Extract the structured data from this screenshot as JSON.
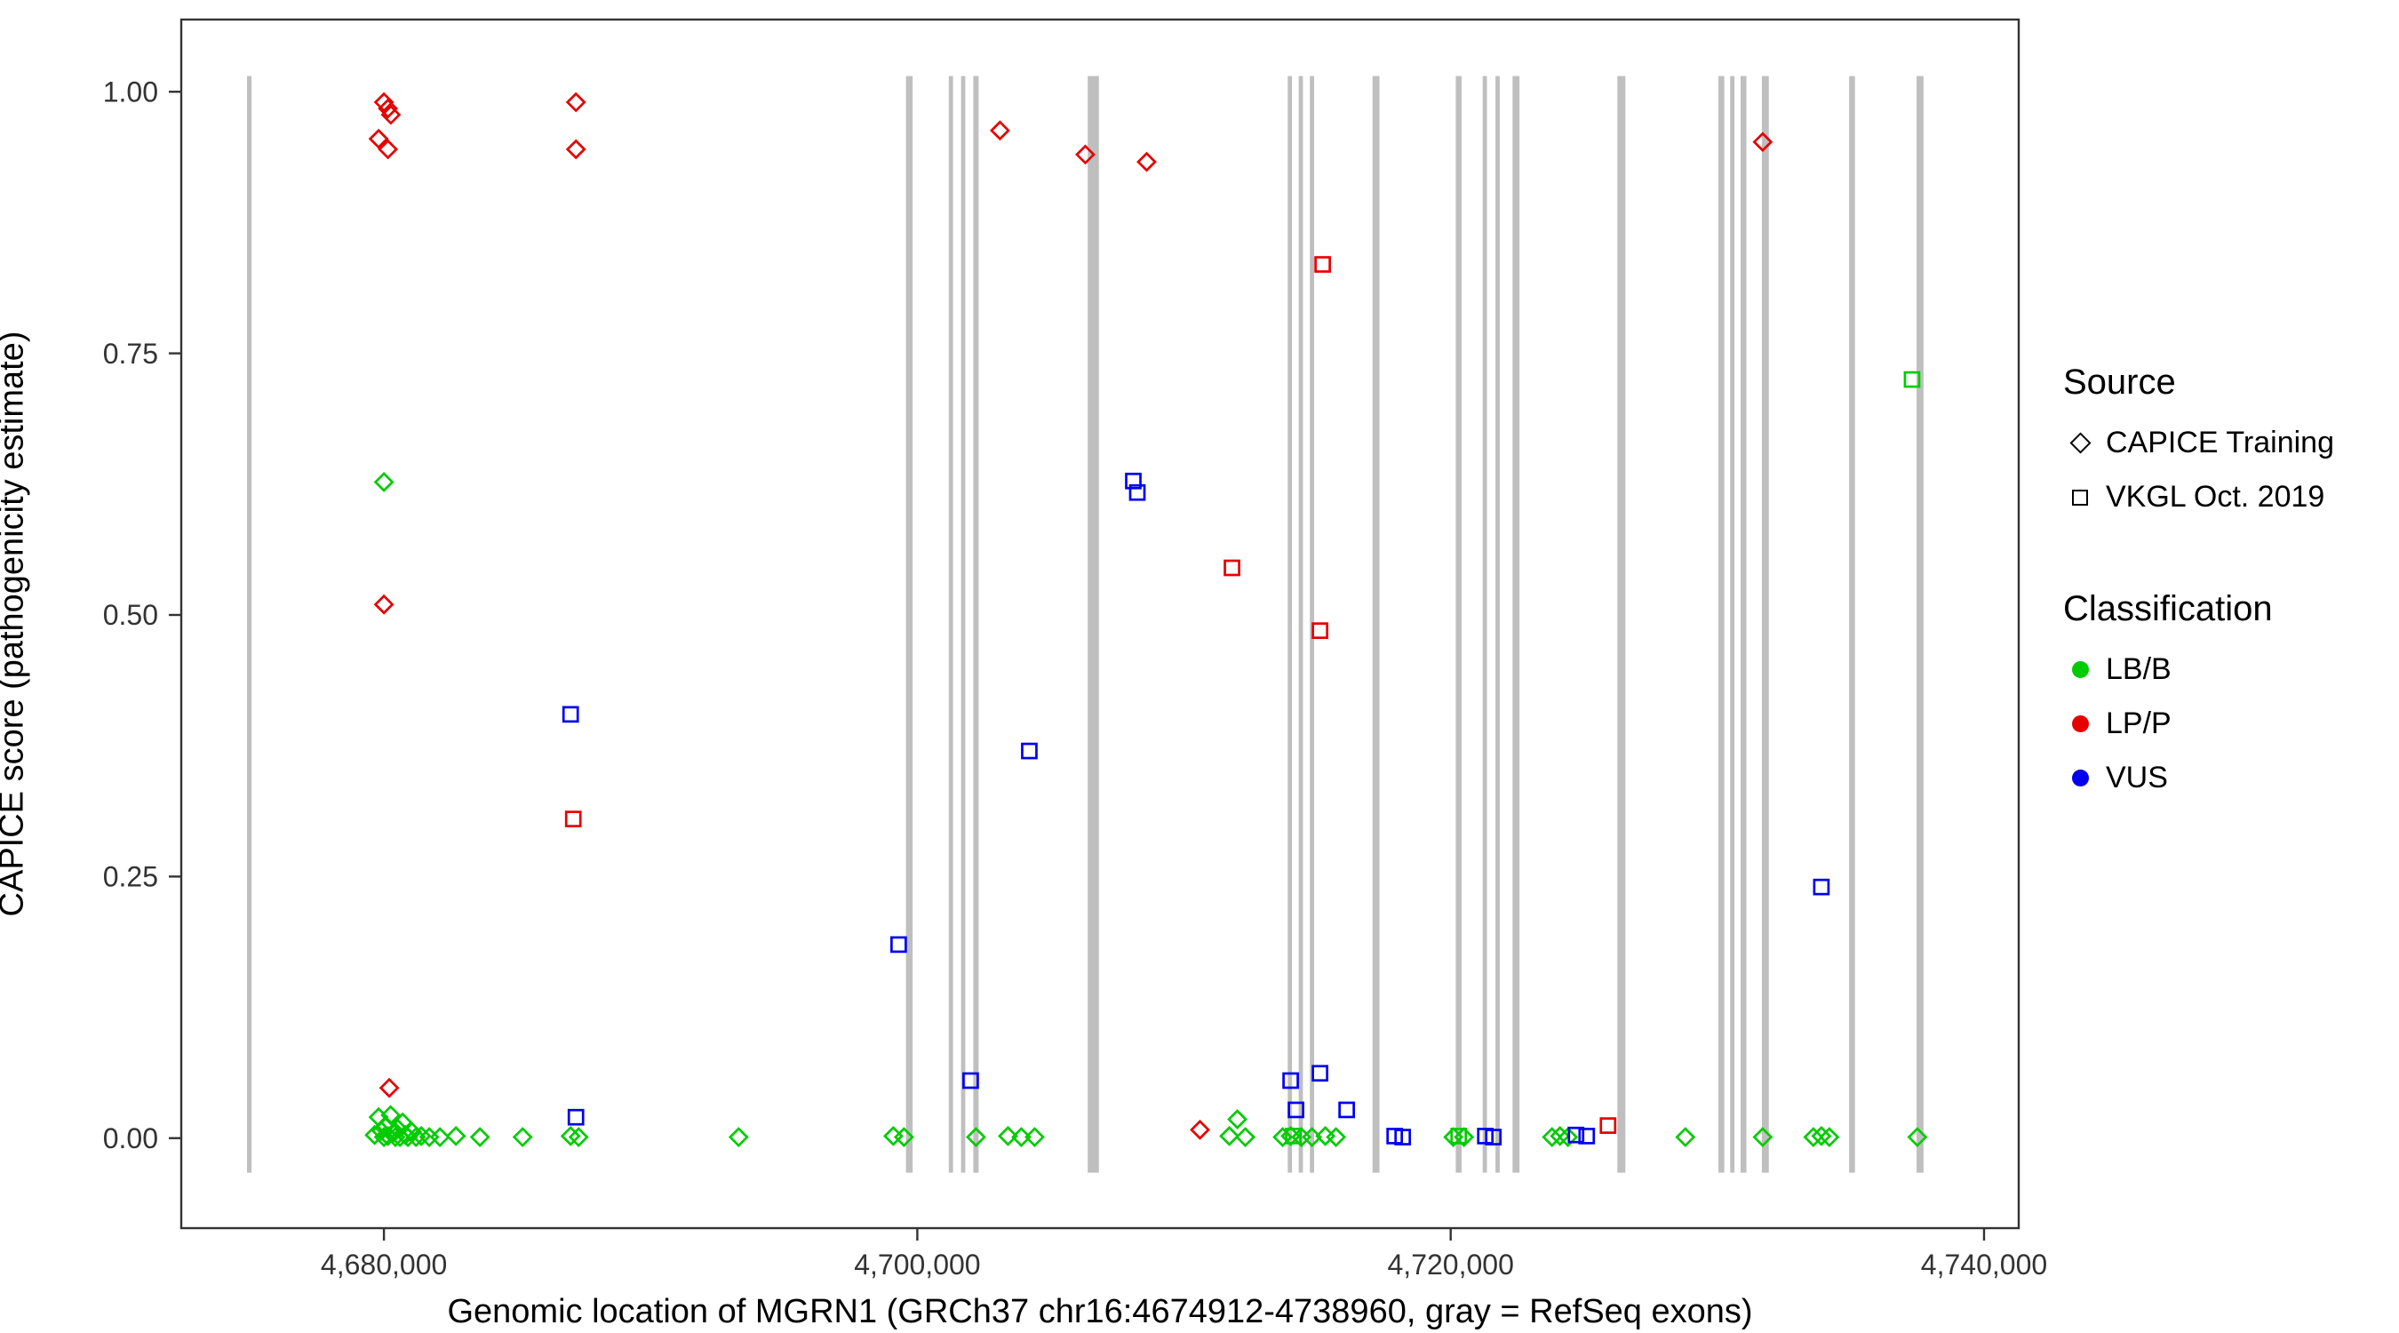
{
  "chart_data": {
    "type": "scatter",
    "title": "",
    "xlabel": "Genomic location of MGRN1 (GRCh37 chr16:4674912-4738960, gray = RefSeq exons)",
    "ylabel": "CAPICE score (pathogenicity estimate)",
    "xlim": [
      4672400,
      4741300
    ],
    "ylim": [
      -0.086,
      1.069
    ],
    "grid": false,
    "panel_border_color": "#333333",
    "exon_color": "#bfbfbf",
    "exon_y_span": [
      -0.033,
      1.015
    ],
    "x_ticks": [
      {
        "value": 4680000,
        "label": "4,680,000"
      },
      {
        "value": 4700000,
        "label": "4,700,000"
      },
      {
        "value": 4720000,
        "label": "4,720,000"
      },
      {
        "value": 4740000,
        "label": "4,740,000"
      }
    ],
    "y_ticks": [
      {
        "value": 0.0,
        "label": "0.00"
      },
      {
        "value": 0.25,
        "label": "0.25"
      },
      {
        "value": 0.5,
        "label": "0.50"
      },
      {
        "value": 0.75,
        "label": "0.75"
      },
      {
        "value": 1.0,
        "label": "1.00"
      }
    ],
    "exons": [
      {
        "x": 4674950,
        "width_bp": 170
      },
      {
        "x": 4699700,
        "width_bp": 250
      },
      {
        "x": 4701260,
        "width_bp": 160
      },
      {
        "x": 4701720,
        "width_bp": 160
      },
      {
        "x": 4702200,
        "width_bp": 200
      },
      {
        "x": 4706600,
        "width_bp": 420
      },
      {
        "x": 4713970,
        "width_bp": 160
      },
      {
        "x": 4714380,
        "width_bp": 160
      },
      {
        "x": 4714800,
        "width_bp": 160
      },
      {
        "x": 4717200,
        "width_bp": 260
      },
      {
        "x": 4720300,
        "width_bp": 220
      },
      {
        "x": 4721280,
        "width_bp": 160
      },
      {
        "x": 4721760,
        "width_bp": 160
      },
      {
        "x": 4722450,
        "width_bp": 260
      },
      {
        "x": 4726400,
        "width_bp": 300
      },
      {
        "x": 4730150,
        "width_bp": 220
      },
      {
        "x": 4730560,
        "width_bp": 160
      },
      {
        "x": 4730980,
        "width_bp": 220
      },
      {
        "x": 4731800,
        "width_bp": 260
      },
      {
        "x": 4735050,
        "width_bp": 220
      },
      {
        "x": 4737600,
        "width_bp": 260
      }
    ],
    "series": [
      {
        "name": "LP/P — CAPICE Training",
        "classification": "LP/P",
        "source": "CAPICE Training",
        "marker": "diamond",
        "color": "#e60000",
        "points": [
          [
            4680000,
            0.99
          ],
          [
            4680150,
            0.984
          ],
          [
            4680260,
            0.978
          ],
          [
            4679800,
            0.955
          ],
          [
            4680150,
            0.945
          ],
          [
            4687200,
            0.99
          ],
          [
            4687200,
            0.945
          ],
          [
            4703100,
            0.963
          ],
          [
            4706300,
            0.94
          ],
          [
            4708600,
            0.933
          ],
          [
            4731700,
            0.952
          ],
          [
            4680000,
            0.51
          ],
          [
            4680200,
            0.048
          ],
          [
            4710600,
            0.008
          ]
        ]
      },
      {
        "name": "LP/P — VKGL Oct. 2019",
        "classification": "LP/P",
        "source": "VKGL Oct. 2019",
        "marker": "square",
        "color": "#e60000",
        "points": [
          [
            4715200,
            0.835
          ],
          [
            4711800,
            0.545
          ],
          [
            4715100,
            0.485
          ],
          [
            4687100,
            0.305
          ],
          [
            4725900,
            0.012
          ]
        ]
      },
      {
        "name": "LB/B — CAPICE Training",
        "classification": "LB/B",
        "source": "CAPICE Training",
        "marker": "diamond",
        "color": "#00cc00",
        "points": [
          [
            4680000,
            0.627
          ],
          [
            4679650,
            0.003
          ],
          [
            4679800,
            0.02
          ],
          [
            4679900,
            0.007
          ],
          [
            4680000,
            0.001
          ],
          [
            4680060,
            0.012
          ],
          [
            4680150,
            0.002
          ],
          [
            4680250,
            0.022
          ],
          [
            4680350,
            0.005
          ],
          [
            4680430,
            0.001
          ],
          [
            4680520,
            0.009
          ],
          [
            4680600,
            0.001
          ],
          [
            4680700,
            0.015
          ],
          [
            4680800,
            0.003
          ],
          [
            4680900,
            0.001
          ],
          [
            4681050,
            0.006
          ],
          [
            4681200,
            0.001
          ],
          [
            4681400,
            0.002
          ],
          [
            4681700,
            0.001
          ],
          [
            4682100,
            0.001
          ],
          [
            4682700,
            0.002
          ],
          [
            4683600,
            0.001
          ],
          [
            4685200,
            0.001
          ],
          [
            4687000,
            0.002
          ],
          [
            4687300,
            0.001
          ],
          [
            4693300,
            0.001
          ],
          [
            4699100,
            0.002
          ],
          [
            4699500,
            0.001
          ],
          [
            4702200,
            0.001
          ],
          [
            4703400,
            0.002
          ],
          [
            4703900,
            0.001
          ],
          [
            4704400,
            0.001
          ],
          [
            4711700,
            0.002
          ],
          [
            4712000,
            0.018
          ],
          [
            4712300,
            0.001
          ],
          [
            4713700,
            0.001
          ],
          [
            4714000,
            0.002
          ],
          [
            4714400,
            0.001
          ],
          [
            4714800,
            0.001
          ],
          [
            4715300,
            0.002
          ],
          [
            4715700,
            0.001
          ],
          [
            4720100,
            0.001
          ],
          [
            4720500,
            0.001
          ],
          [
            4723800,
            0.001
          ],
          [
            4724100,
            0.002
          ],
          [
            4724400,
            0.001
          ],
          [
            4728800,
            0.001
          ],
          [
            4731700,
            0.001
          ],
          [
            4733600,
            0.001
          ],
          [
            4733900,
            0.002
          ],
          [
            4734200,
            0.001
          ],
          [
            4737500,
            0.001
          ]
        ]
      },
      {
        "name": "LB/B — VKGL Oct. 2019",
        "classification": "LB/B",
        "source": "VKGL Oct. 2019",
        "marker": "square",
        "color": "#00cc00",
        "points": [
          [
            4737300,
            0.725
          ],
          [
            4714100,
            0.002
          ],
          [
            4720300,
            0.002
          ]
        ]
      },
      {
        "name": "VUS — VKGL Oct. 2019",
        "classification": "VUS",
        "source": "VKGL Oct. 2019",
        "marker": "square",
        "color": "#0000ee",
        "points": [
          [
            4687000,
            0.405
          ],
          [
            4687200,
            0.02
          ],
          [
            4699300,
            0.185
          ],
          [
            4702000,
            0.055
          ],
          [
            4704200,
            0.37
          ],
          [
            4708100,
            0.628
          ],
          [
            4708250,
            0.617
          ],
          [
            4714000,
            0.055
          ],
          [
            4715100,
            0.062
          ],
          [
            4714200,
            0.027
          ],
          [
            4716100,
            0.027
          ],
          [
            4717900,
            0.002
          ],
          [
            4718200,
            0.001
          ],
          [
            4721300,
            0.002
          ],
          [
            4721600,
            0.001
          ],
          [
            4724700,
            0.003
          ],
          [
            4725100,
            0.002
          ],
          [
            4733900,
            0.24
          ]
        ]
      }
    ],
    "legend": {
      "source_title": "Source",
      "source_items": [
        {
          "label": "CAPICE Training",
          "marker": "diamond"
        },
        {
          "label": "VKGL Oct. 2019",
          "marker": "square"
        }
      ],
      "classification_title": "Classification",
      "classification_items": [
        {
          "label": "LB/B",
          "color": "#00cc00"
        },
        {
          "label": "LP/P",
          "color": "#e60000"
        },
        {
          "label": "VUS",
          "color": "#0000ee"
        }
      ]
    }
  }
}
